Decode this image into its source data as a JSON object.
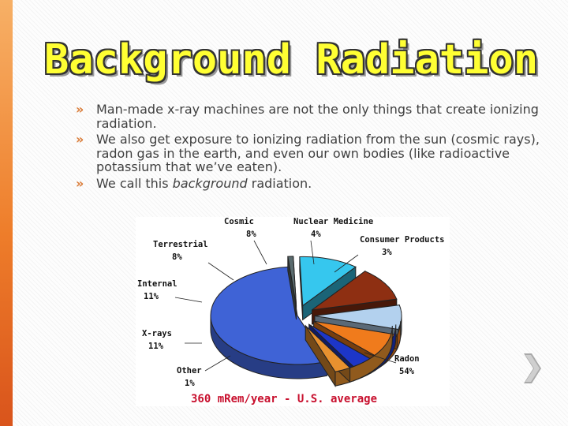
{
  "slide": {
    "title": "Background Radiation",
    "bullet_marker": "»",
    "bullets": [
      {
        "parts": [
          "Man-made x-ray machines are not the only things that create ionizing radiation."
        ]
      },
      {
        "parts": [
          "We also get exposure to ionizing radiation from the sun (cosmic rays), radon gas in the earth, and even our own bodies (like radioactive potassium that we’ve eaten)."
        ]
      },
      {
        "pre": "We call this ",
        "em": "background",
        "post": " radiation."
      }
    ]
  },
  "chart_data": {
    "type": "pie",
    "caption": "360 mRem/year - U.S. average",
    "slices": [
      {
        "name": "Radon",
        "value": 54,
        "label": "54%",
        "color": "#3f63d6"
      },
      {
        "name": "Other",
        "value": 1,
        "label": "1%",
        "color": "#5a6b6e"
      },
      {
        "name": "X-rays",
        "value": 11,
        "label": "11%",
        "color": "#36c7ee"
      },
      {
        "name": "Internal",
        "value": 11,
        "label": "11%",
        "color": "#8e2f12"
      },
      {
        "name": "Terrestrial",
        "value": 8,
        "label": "8%",
        "color": "#b3d1ee"
      },
      {
        "name": "Cosmic",
        "value": 8,
        "label": "8%",
        "color": "#f07b1c"
      },
      {
        "name": "Nuclear Medicine",
        "value": 4,
        "label": "4%",
        "color": "#1d36c8"
      },
      {
        "name": "Consumer Products",
        "value": 3,
        "label": "3%",
        "color": "#e8912f"
      }
    ]
  },
  "icons": {
    "next": "chevron-right-icon"
  },
  "colors": {
    "title_fill": "#ffff33",
    "accent": "#d97a35",
    "caption": "#c8102e"
  }
}
